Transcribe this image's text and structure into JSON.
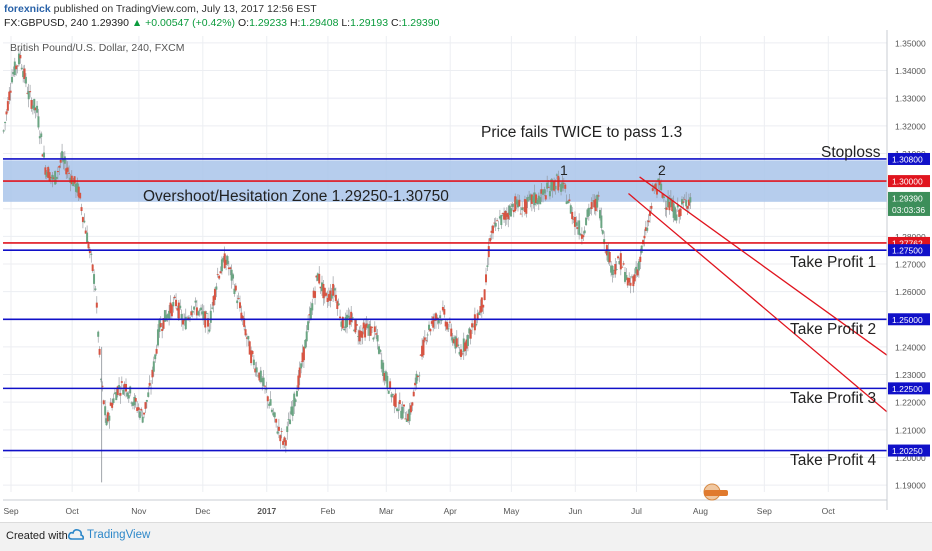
{
  "header": {
    "user": "forexnick",
    "published": "published on TradingView.com, July 13, 2017 12:56 EST",
    "symbol_line": "FX:GBPUSD, 240  1.29390",
    "change": "▲ +0.00547 (+0.42%)",
    "ohlc_o_label": "O:",
    "ohlc_o": "1.29233",
    "ohlc_h_label": "H:",
    "ohlc_h": "1.29408",
    "ohlc_l_label": "L:",
    "ohlc_l": "1.29193",
    "ohlc_c_label": "C:",
    "ohlc_c": "1.29390"
  },
  "footer": {
    "created_with": "Created with",
    "brand": "TradingView"
  },
  "colors": {
    "up": "#0a9b3c",
    "blue_line": "#1010c8",
    "red_line": "#e0141e",
    "zone_fill": "#a9c4ea"
  },
  "chart_data": {
    "type": "candlestick",
    "title": "British Pound/U.S. Dollar, 240, FXCM",
    "ylim": [
      1.1875,
      1.3525
    ],
    "x_ticks": [
      "Sep",
      "Oct",
      "Nov",
      "Dec",
      "2017",
      "Feb",
      "Mar",
      "Apr",
      "May",
      "Jun",
      "Jul",
      "Aug",
      "Sep",
      "Oct"
    ],
    "y_ticks": [
      "1.35000",
      "1.34000",
      "1.33000",
      "1.32000",
      "1.31000",
      "1.30000",
      "1.29000",
      "1.28000",
      "1.27000",
      "1.26000",
      "1.25000",
      "1.24000",
      "1.23000",
      "1.22000",
      "1.21000",
      "1.20000",
      "1.19000"
    ],
    "price_path": [
      [
        0,
        1.318
      ],
      [
        3,
        1.338
      ],
      [
        6,
        1.345
      ],
      [
        9,
        1.331
      ],
      [
        12,
        1.325
      ],
      [
        15,
        1.305
      ],
      [
        18,
        1.3
      ],
      [
        21,
        1.308
      ],
      [
        24,
        1.302
      ],
      [
        27,
        1.296
      ],
      [
        30,
        1.28
      ],
      [
        33,
        1.262
      ],
      [
        35,
        1.228
      ],
      [
        37,
        1.212
      ],
      [
        39,
        1.22
      ],
      [
        41,
        1.225
      ],
      [
        44,
        1.226
      ],
      [
        47,
        1.22
      ],
      [
        50,
        1.215
      ],
      [
        53,
        1.226
      ],
      [
        56,
        1.247
      ],
      [
        59,
        1.252
      ],
      [
        62,
        1.256
      ],
      [
        65,
        1.248
      ],
      [
        68,
        1.255
      ],
      [
        71,
        1.252
      ],
      [
        74,
        1.248
      ],
      [
        77,
        1.266
      ],
      [
        80,
        1.272
      ],
      [
        83,
        1.262
      ],
      [
        86,
        1.25
      ],
      [
        89,
        1.237
      ],
      [
        92,
        1.23
      ],
      [
        95,
        1.222
      ],
      [
        98,
        1.212
      ],
      [
        101,
        1.205
      ],
      [
        104,
        1.218
      ],
      [
        107,
        1.232
      ],
      [
        110,
        1.25
      ],
      [
        113,
        1.266
      ],
      [
        116,
        1.257
      ],
      [
        119,
        1.261
      ],
      [
        122,
        1.248
      ],
      [
        125,
        1.25
      ],
      [
        128,
        1.245
      ],
      [
        131,
        1.247
      ],
      [
        134,
        1.244
      ],
      [
        137,
        1.23
      ],
      [
        140,
        1.222
      ],
      [
        143,
        1.217
      ],
      [
        146,
        1.215
      ],
      [
        149,
        1.23
      ],
      [
        152,
        1.245
      ],
      [
        155,
        1.25
      ],
      [
        158,
        1.252
      ],
      [
        161,
        1.245
      ],
      [
        164,
        1.238
      ],
      [
        167,
        1.243
      ],
      [
        170,
        1.25
      ],
      [
        173,
        1.258
      ],
      [
        175,
        1.28
      ],
      [
        178,
        1.285
      ],
      [
        181,
        1.288
      ],
      [
        184,
        1.292
      ],
      [
        187,
        1.29
      ],
      [
        190,
        1.293
      ],
      [
        193,
        1.294
      ],
      [
        196,
        1.297
      ],
      [
        199,
        1.3
      ],
      [
        202,
        1.296
      ],
      [
        205,
        1.287
      ],
      [
        208,
        1.281
      ],
      [
        211,
        1.29
      ],
      [
        214,
        1.293
      ],
      [
        216,
        1.279
      ],
      [
        219,
        1.268
      ],
      [
        222,
        1.271
      ],
      [
        225,
        1.262
      ],
      [
        228,
        1.268
      ],
      [
        230,
        1.277
      ],
      [
        232,
        1.285
      ],
      [
        234,
        1.298
      ],
      [
        236,
        1.298
      ],
      [
        238,
        1.293
      ],
      [
        240,
        1.291
      ],
      [
        242,
        1.288
      ],
      [
        245,
        1.292
      ],
      [
        247,
        1.2939
      ]
    ],
    "lines": [
      {
        "price": 1.308,
        "color": "blue",
        "label": "1.30800"
      },
      {
        "price": 1.3,
        "color": "red",
        "label": "1.30000"
      },
      {
        "price": 1.27762,
        "color": "red",
        "label": "1.27762"
      },
      {
        "price": 1.275,
        "color": "blue",
        "label": "1.27500"
      },
      {
        "price": 1.25,
        "color": "blue",
        "label": "1.25000"
      },
      {
        "price": 1.225,
        "color": "blue",
        "label": "1.22500"
      },
      {
        "price": 1.2025,
        "color": "blue",
        "label": "1.20250"
      }
    ],
    "zone": {
      "from": 1.2925,
      "to": 1.3075
    },
    "current_price": "1.29390",
    "countdown": "03:03:36",
    "channel": [
      {
        "x1": 229,
        "y1": 1.3015,
        "x2": 318,
        "y2": 1.237
      },
      {
        "x1": 225,
        "y1": 1.2955,
        "x2": 318,
        "y2": 1.2165
      }
    ],
    "annotations": {
      "headline": "Price fails TWICE to pass 1.3",
      "stoploss": "Stoploss",
      "zone_label": "Overshoot/Hesitation Zone 1.29250-1.30750",
      "marker1": "1",
      "marker2": "2",
      "tp1": "Take Profit 1",
      "tp2": "Take Profit 2",
      "tp3": "Take Profit 3",
      "tp4": "Take Profit 4"
    }
  }
}
